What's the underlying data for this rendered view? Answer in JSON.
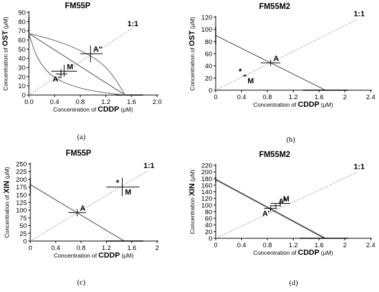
{
  "chart_data": [
    {
      "panel_label": "(a)",
      "type": "line",
      "title": "FM55P",
      "xlabel_prefix": "Concentration of ",
      "xlabel_drug": "CDDP",
      "xlabel_unit": " (μM)",
      "ylabel_prefix": "Concentration of ",
      "ylabel_drug": "OST",
      "ylabel_unit": " (μM)",
      "xlim": [
        0,
        2
      ],
      "ylim": [
        0,
        90
      ],
      "xticks": [
        "0.0",
        "0.4",
        "0.8",
        "1.2",
        "1.6",
        "2.0"
      ],
      "xtick_values": [
        0,
        0.4,
        0.8,
        1.2,
        1.6,
        2.0
      ],
      "yticks": [
        "0",
        "10",
        "20",
        "30",
        "40",
        "50",
        "60",
        "70",
        "80",
        "90"
      ],
      "ytick_values": [
        0,
        10,
        20,
        30,
        40,
        50,
        60,
        70,
        80,
        90
      ],
      "line_label": "1:1",
      "isobologram": {
        "x_intercept": 1.5,
        "y_intercept": 67,
        "x_intercept_error": [
          1.35,
          1.78
        ],
        "y_intercept_error": [
          62,
          85
        ]
      },
      "confidence_curves": [
        {
          "points": [
            [
              0,
              67
            ],
            [
              0.4,
              60
            ],
            [
              0.8,
              49
            ],
            [
              1.1,
              37
            ],
            [
              1.3,
              23
            ],
            [
              1.5,
              0
            ]
          ]
        },
        {
          "points": [
            [
              0,
              67
            ],
            [
              0.12,
              40
            ],
            [
              0.35,
              20
            ],
            [
              0.7,
              9
            ],
            [
              1.1,
              3
            ],
            [
              1.5,
              0
            ]
          ]
        }
      ],
      "diagonal": {
        "from": [
          0,
          0
        ],
        "to": [
          1.6,
          72
        ]
      },
      "points": [
        {
          "label": "A''",
          "x": 0.96,
          "y": 45,
          "xerr": [
            0.8,
            1.15
          ],
          "yerr": [
            36,
            54
          ]
        },
        {
          "label": "M",
          "x": 0.55,
          "y": 26,
          "xerr": [
            0.35,
            0.75
          ],
          "yerr": [
            20,
            33
          ]
        },
        {
          "label": "A'",
          "x": 0.5,
          "y": 23,
          "xerr": [
            0.42,
            0.6
          ],
          "yerr": [
            18,
            28
          ]
        }
      ]
    },
    {
      "panel_label": "(b)",
      "type": "line",
      "title": "FM55M2",
      "xlabel_prefix": "Concentration of ",
      "xlabel_drug": "CDDP",
      "xlabel_unit": " (μM)",
      "ylabel_prefix": "Concentration of ",
      "ylabel_drug": "OST",
      "ylabel_unit": " (μM)",
      "xlim": [
        0,
        2.4
      ],
      "ylim": [
        0,
        120
      ],
      "xticks": [
        "0",
        "0.4",
        "0.8",
        "1.2",
        "1.6",
        "2",
        "2.4"
      ],
      "xtick_values": [
        0,
        0.4,
        0.8,
        1.2,
        1.6,
        2.0,
        2.4
      ],
      "yticks": [
        "0",
        "20",
        "40",
        "60",
        "80",
        "100",
        "120"
      ],
      "ytick_values": [
        0,
        20,
        40,
        60,
        80,
        100,
        120
      ],
      "line_label": "1:1",
      "isobologram": {
        "x_intercept": 1.7,
        "y_intercept": 90,
        "x_intercept_error": [
          1.35,
          2.05
        ],
        "y_intercept_error": [
          75,
          105
        ]
      },
      "diagonal": {
        "from": [
          0,
          0
        ],
        "to": [
          2.2,
          117
        ]
      },
      "points": [
        {
          "label": "A",
          "x": 0.85,
          "y": 45,
          "xerr": [
            0.7,
            1.0
          ],
          "yerr": [
            40,
            50
          ]
        },
        {
          "label": "M",
          "x": 0.45,
          "y": 24,
          "xerr": [
            0.42,
            0.48
          ],
          "yerr": [
            22,
            26
          ],
          "star": "*"
        }
      ]
    },
    {
      "panel_label": "(c)",
      "type": "line",
      "title": "FM55P",
      "xlabel_prefix": "Concentration of ",
      "xlabel_drug": "CDDP",
      "xlabel_unit": " (μM)",
      "ylabel_prefix": "Concentration of ",
      "ylabel_drug": "XIN",
      "ylabel_unit": " (μM)",
      "xlim": [
        0,
        2
      ],
      "ylim": [
        0,
        250
      ],
      "xticks": [
        "0",
        "0.4",
        "0.8",
        "1.2",
        "1.6",
        "2"
      ],
      "xtick_values": [
        0,
        0.4,
        0.8,
        1.2,
        1.6,
        2.0
      ],
      "yticks": [
        "0",
        "25",
        "50",
        "75",
        "100",
        "125",
        "150",
        "175",
        "200",
        "225",
        "250"
      ],
      "ytick_values": [
        0,
        25,
        50,
        75,
        100,
        125,
        150,
        175,
        200,
        225,
        250
      ],
      "line_label": "1:1",
      "isobologram": {
        "x_intercept": 1.48,
        "y_intercept": 183,
        "x_intercept_error": [
          1.2,
          1.78
        ],
        "y_intercept_error": [
          150,
          205
        ]
      },
      "diagonal": {
        "from": [
          0,
          0
        ],
        "to": [
          1.85,
          228
        ]
      },
      "points": [
        {
          "label": "A",
          "x": 0.74,
          "y": 92,
          "xerr": [
            0.6,
            0.88
          ],
          "yerr": [
            80,
            104
          ]
        },
        {
          "label": "M",
          "x": 1.45,
          "y": 175,
          "xerr": [
            1.2,
            1.72
          ],
          "yerr": [
            145,
            205
          ],
          "star": "*"
        }
      ]
    },
    {
      "panel_label": "(d)",
      "type": "line",
      "title": "FM55M2",
      "xlabel_prefix": "Concentration of ",
      "xlabel_drug": "CDDP",
      "xlabel_unit": " (μM)",
      "ylabel_prefix": "Concentration ",
      "ylabel_drug": "XIN",
      "ylabel_unit": " (μM)",
      "xlim": [
        0,
        2.4
      ],
      "ylim": [
        0,
        220
      ],
      "xticks": [
        "0",
        "0.4",
        "0.8",
        "1.2",
        "1.6",
        "2",
        "2.4"
      ],
      "xtick_values": [
        0,
        0.4,
        0.8,
        1.2,
        1.6,
        2.0,
        2.4
      ],
      "yticks": [
        "0",
        "20",
        "40",
        "60",
        "80",
        "100",
        "120",
        "140",
        "160",
        "180",
        "200",
        "220"
      ],
      "ytick_values": [
        0,
        20,
        40,
        60,
        80,
        100,
        120,
        140,
        160,
        180,
        200,
        220
      ],
      "line_label": "1:1",
      "isobologram": {
        "x_intercept": 1.7,
        "y_intercept": 178,
        "x_intercept_error": [
          1.3,
          2.05
        ],
        "y_intercept_error": [
          168,
          186
        ]
      },
      "extra_lines": [
        {
          "from": [
            0,
            178
          ],
          "to": [
            1.7,
            0
          ]
        },
        {
          "from": [
            0,
            176
          ],
          "to": [
            1.68,
            0
          ]
        }
      ],
      "diagonal": {
        "from": [
          0,
          0
        ],
        "to": [
          2.2,
          200
        ]
      },
      "points": [
        {
          "label": "A'",
          "x": 0.85,
          "y": 90,
          "xerr": [
            0.75,
            0.95
          ],
          "yerr": [
            80,
            100
          ]
        },
        {
          "label": "A''",
          "x": 0.93,
          "y": 98,
          "xerr": [
            0.85,
            1.0
          ],
          "yerr": [
            92,
            104
          ]
        },
        {
          "label": "M",
          "x": 1.0,
          "y": 105,
          "xerr": [
            0.85,
            1.15
          ],
          "yerr": [
            95,
            117
          ]
        }
      ]
    }
  ]
}
